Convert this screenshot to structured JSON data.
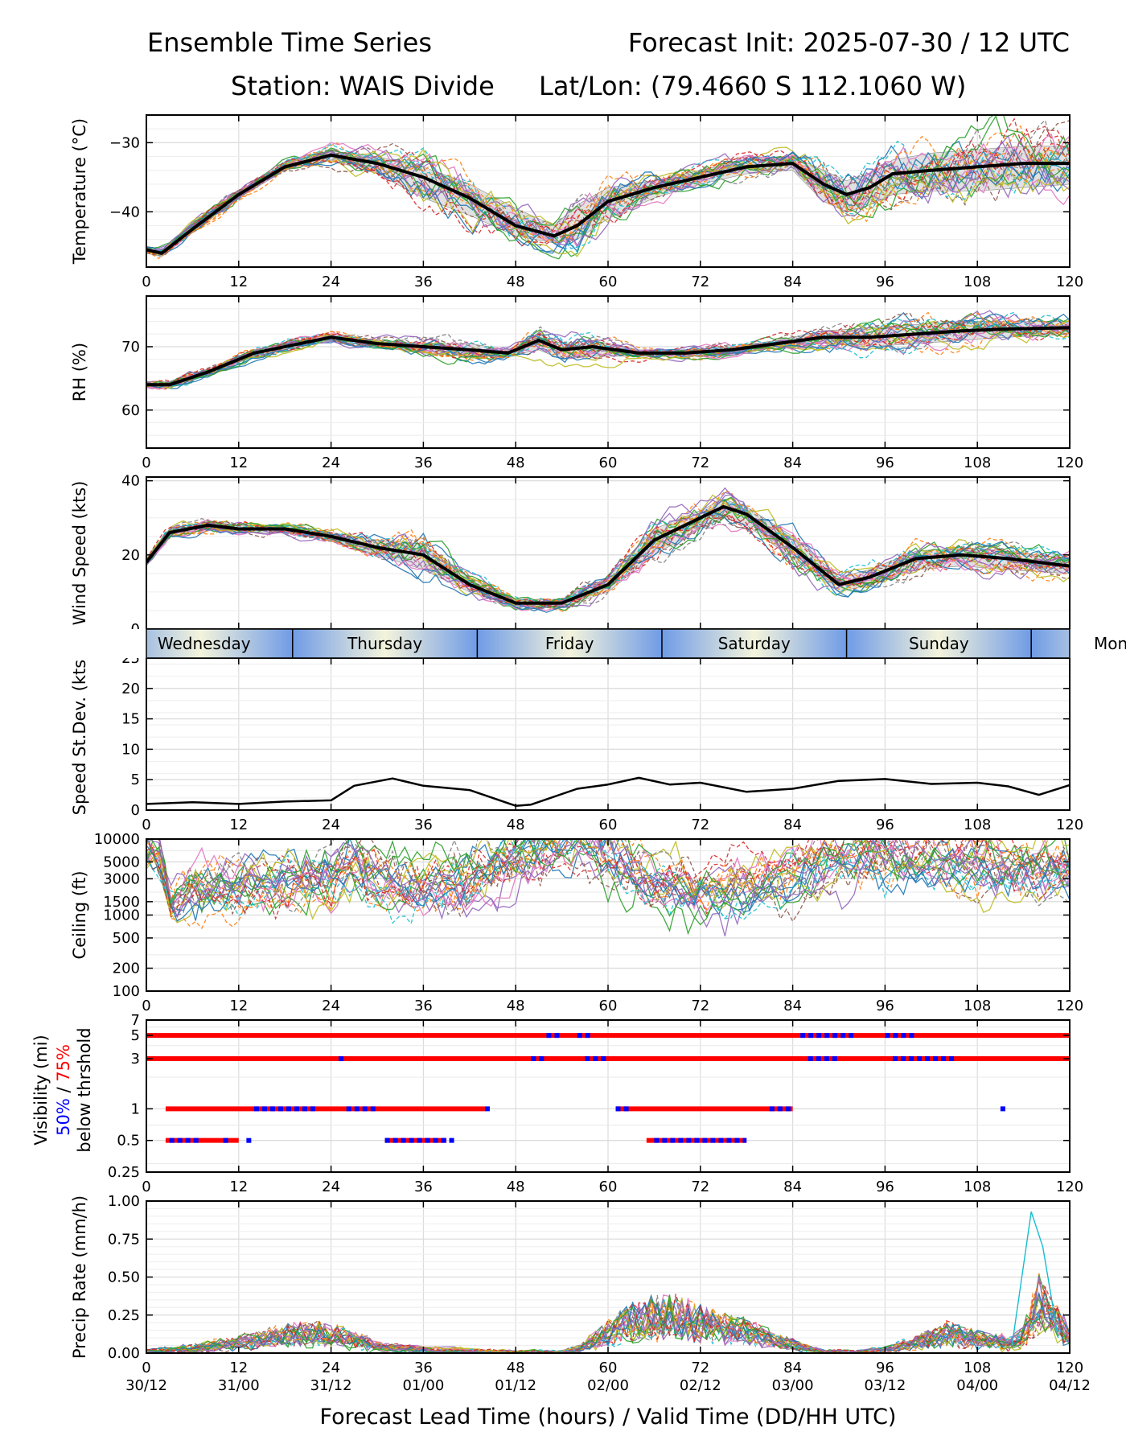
{
  "header": {
    "title_left": "Ensemble Time Series",
    "title_right": "Forecast Init: 2025-07-30 / 12 UTC",
    "station": "Station: WAIS Divide",
    "latlon": "Lat/Lon: (79.4660 S 112.1060 W)"
  },
  "xaxis": {
    "label": "Forecast Lead Time (hours) / Valid Time (DD/HH UTC)",
    "ticks": [
      "0",
      "12",
      "24",
      "36",
      "48",
      "60",
      "72",
      "84",
      "96",
      "108",
      "120"
    ],
    "valid_times": [
      "30/12",
      "31/00",
      "31/12",
      "01/00",
      "01/12",
      "02/00",
      "02/12",
      "03/00",
      "03/12",
      "04/00",
      "04/12"
    ],
    "range": [
      0,
      120
    ]
  },
  "days": [
    "Wednesday",
    "Thursday",
    "Friday",
    "Saturday",
    "Sunday",
    "Mon"
  ],
  "colors": {
    "mean": "#000000",
    "spread": "#d9d9d9",
    "vis_50": "#0000ff",
    "vis_75": "#ff0000",
    "day_dark": "#6f9be6",
    "day_light": "#f4f4dc",
    "members": [
      "#1f77b4",
      "#ff7f0e",
      "#2ca02c",
      "#d62728",
      "#9467bd",
      "#8c564b",
      "#e377c2",
      "#7f7f7f",
      "#bcbd22",
      "#17becf"
    ]
  },
  "chart_data": [
    {
      "id": "temperature",
      "type": "line",
      "ylabel": "Temperature (°C)",
      "ylim": [
        -48,
        -26
      ],
      "yticks": [
        "−30",
        "−40"
      ],
      "ytick_values": [
        -30,
        -40
      ],
      "grid": true,
      "x": [
        0,
        2,
        6,
        12,
        18,
        24,
        30,
        36,
        42,
        48,
        53,
        56,
        60,
        66,
        72,
        78,
        84,
        88,
        91,
        94,
        97,
        102,
        108,
        114,
        120
      ],
      "mean": [
        -45.5,
        -46,
        -42.5,
        -37.5,
        -33.5,
        -31.8,
        -33,
        -35,
        -38,
        -42,
        -43.5,
        -42,
        -38.5,
        -36.5,
        -35,
        -33.5,
        -33,
        -36,
        -37.5,
        -36.5,
        -34.5,
        -34,
        -33.5,
        -33,
        -33
      ],
      "spread_low": [
        -46,
        -46.5,
        -43,
        -38,
        -34,
        -32.5,
        -34.5,
        -38,
        -40.5,
        -43.5,
        -44.5,
        -44,
        -41,
        -38,
        -36,
        -34.5,
        -34,
        -38.5,
        -40,
        -39,
        -37.5,
        -37,
        -37,
        -36.5,
        -36
      ],
      "spread_high": [
        -45,
        -45.5,
        -42,
        -37,
        -33,
        -31.2,
        -32,
        -33.5,
        -36,
        -39.5,
        -42,
        -39,
        -36.5,
        -35.5,
        -34,
        -32.5,
        -32,
        -34,
        -35.5,
        -34.5,
        -32.5,
        -31.5,
        -31,
        -30.5,
        -30.5
      ],
      "members": 25
    },
    {
      "id": "rh",
      "type": "line",
      "ylabel": "RH (%)",
      "ylim": [
        54,
        78
      ],
      "yticks": [
        "60",
        "70"
      ],
      "ytick_values": [
        60,
        70
      ],
      "grid": true,
      "x": [
        0,
        3,
        8,
        14,
        20,
        24,
        30,
        36,
        42,
        47,
        51,
        54,
        58,
        64,
        70,
        76,
        82,
        88,
        94,
        100,
        106,
        112,
        120
      ],
      "mean": [
        64,
        64,
        66,
        69,
        70.5,
        71.5,
        70.5,
        70,
        69.5,
        69,
        71,
        69.5,
        70,
        69,
        69,
        69.5,
        70.5,
        71.5,
        71.5,
        72,
        72.5,
        72.8,
        73
      ],
      "spread_low": [
        63.5,
        63.5,
        65.5,
        68.5,
        70,
        71,
        70,
        69,
        68.5,
        68.5,
        69.5,
        68,
        68.5,
        68.5,
        68.5,
        69,
        70,
        70.5,
        70,
        70.5,
        71,
        71.5,
        72
      ],
      "spread_high": [
        64.5,
        64.5,
        66.5,
        69.5,
        71,
        72,
        71,
        70.5,
        70.5,
        69.5,
        72,
        70.5,
        71,
        69.5,
        69.5,
        70,
        71,
        72.5,
        73,
        73.5,
        74,
        74,
        74
      ],
      "members": 25
    },
    {
      "id": "wind_speed",
      "type": "line",
      "ylabel": "Wind Speed (kts)",
      "ylim": [
        0,
        41
      ],
      "yticks": [
        "0",
        "20",
        "40"
      ],
      "ytick_values": [
        0,
        20,
        40
      ],
      "grid": true,
      "x": [
        0,
        3,
        8,
        12,
        18,
        24,
        30,
        36,
        42,
        48,
        54,
        60,
        66,
        72,
        75,
        78,
        84,
        90,
        94,
        100,
        106,
        112,
        120
      ],
      "mean": [
        18,
        26,
        28,
        27,
        27,
        25,
        22,
        20,
        12,
        7,
        7,
        12,
        24,
        30,
        33,
        31,
        22,
        12,
        14,
        19,
        20,
        19,
        17
      ],
      "spread_low": [
        17,
        25,
        27,
        26,
        26,
        24,
        20,
        16,
        10,
        6,
        6,
        10,
        20,
        27,
        30,
        28,
        19,
        10,
        12,
        16,
        17,
        16,
        15
      ],
      "spread_high": [
        19,
        27,
        29,
        28,
        28,
        26,
        24,
        23,
        14,
        8,
        8,
        14,
        27,
        32,
        35,
        33,
        25,
        14,
        16,
        21,
        22,
        21,
        19
      ],
      "members": 25
    },
    {
      "id": "speed_stdev",
      "type": "line",
      "ylabel": "Speed St.Dev. (kts)",
      "ylim": [
        0,
        25
      ],
      "yticks": [
        "0",
        "5",
        "10",
        "15",
        "20",
        "25"
      ],
      "ytick_values": [
        0,
        5,
        10,
        15,
        20,
        25
      ],
      "grid": true,
      "x": [
        0,
        6,
        12,
        18,
        24,
        27,
        32,
        36,
        42,
        48,
        50,
        56,
        60,
        64,
        68,
        72,
        78,
        84,
        90,
        96,
        102,
        108,
        112,
        116,
        120
      ],
      "values": [
        1,
        1.3,
        1,
        1.4,
        1.6,
        4,
        5.2,
        4,
        3.3,
        0.7,
        0.9,
        3.5,
        4.2,
        5.3,
        4.2,
        4.5,
        3,
        3.5,
        4.8,
        5.1,
        4.3,
        4.5,
        3.9,
        2.5,
        4.1
      ]
    },
    {
      "id": "ceiling",
      "type": "line",
      "ylabel": "Ceiling (ft)",
      "scale": "log",
      "ylim": [
        100,
        10000
      ],
      "yticks": [
        "10000",
        "5000",
        "3000",
        "1500",
        "1000",
        "500",
        "200",
        "100"
      ],
      "ytick_values": [
        10000,
        5000,
        3000,
        1500,
        1000,
        500,
        200,
        100
      ],
      "grid": true,
      "x": [
        1,
        3,
        6,
        12,
        18,
        24,
        27,
        30,
        36,
        42,
        48,
        56,
        60,
        66,
        72,
        78,
        84,
        90,
        96,
        102,
        108,
        114,
        120
      ],
      "typical": [
        8000,
        1500,
        2500,
        2500,
        3000,
        3000,
        5000,
        3000,
        2200,
        3000,
        6000,
        9000,
        4500,
        2500,
        2200,
        2500,
        3500,
        6000,
        6000,
        5000,
        4500,
        4000,
        4000
      ],
      "members": 25
    },
    {
      "id": "visibility",
      "type": "line",
      "ylabel": "Visibility (mi)",
      "ylabel_50": "50%",
      "ylabel_sep": " / ",
      "ylabel_75": "75%",
      "ylabel_line3": "below thrshold",
      "scale": "log",
      "ylim": [
        0.25,
        7
      ],
      "yticks": [
        "7",
        "5",
        "3",
        "1",
        "0.5",
        "0.25"
      ],
      "ytick_values": [
        7,
        5,
        3,
        1,
        0.5,
        0.25
      ],
      "thresholds": [
        0.5,
        1,
        3,
        5
      ],
      "below_75": [
        {
          "threshold": 5,
          "segments": [
            [
              0,
              120
            ]
          ]
        },
        {
          "threshold": 3,
          "segments": [
            [
              0,
              120
            ]
          ]
        },
        {
          "threshold": 1,
          "segments": [
            [
              2.5,
              44
            ],
            [
              61,
              84
            ]
          ]
        },
        {
          "threshold": 0.5,
          "segments": [
            [
              2.5,
              12
            ],
            [
              31,
              39
            ],
            [
              65,
              78
            ]
          ]
        }
      ],
      "below_50": [
        {
          "threshold": 5,
          "segments": [
            [
              52,
              54
            ],
            [
              56,
              58
            ],
            [
              85,
              92
            ],
            [
              96,
              100
            ]
          ]
        },
        {
          "threshold": 3,
          "segments": [
            [
              25,
              26
            ],
            [
              50,
              52
            ],
            [
              57,
              60
            ],
            [
              86,
              90
            ],
            [
              97,
              105
            ]
          ]
        },
        {
          "threshold": 1,
          "segments": [
            [
              14,
              22
            ],
            [
              26,
              30
            ],
            [
              44,
              45
            ],
            [
              61,
              63
            ],
            [
              81,
              84
            ],
            [
              111,
              112
            ]
          ]
        },
        {
          "threshold": 0.5,
          "segments": [
            [
              3,
              7
            ],
            [
              10,
              11
            ],
            [
              13,
              14
            ],
            [
              31,
              40
            ],
            [
              66,
              78
            ]
          ]
        }
      ],
      "members": 25
    },
    {
      "id": "precip_rate",
      "type": "line",
      "ylabel": "Precip Rate (mm/h)",
      "ylim": [
        0,
        1
      ],
      "yticks": [
        "0.00",
        "0.25",
        "0.50",
        "0.75",
        "1.00"
      ],
      "ytick_values": [
        0,
        0.25,
        0.5,
        0.75,
        1
      ],
      "grid": true,
      "x": [
        0,
        6,
        12,
        18,
        22,
        26,
        30,
        36,
        42,
        48,
        54,
        56,
        60,
        64,
        68,
        72,
        78,
        84,
        88,
        92,
        96,
        100,
        104,
        108,
        112,
        114,
        116,
        118,
        120
      ],
      "typical": [
        0.01,
        0.03,
        0.06,
        0.1,
        0.12,
        0.09,
        0.04,
        0.02,
        0.01,
        0,
        0,
        0.02,
        0.12,
        0.2,
        0.22,
        0.18,
        0.12,
        0.05,
        0.01,
        0,
        0.02,
        0.06,
        0.12,
        0.08,
        0.06,
        0.1,
        0.3,
        0.2,
        0.1
      ],
      "peak_spike": {
        "x": 115.5,
        "y": 0.93
      },
      "members": 25
    }
  ]
}
